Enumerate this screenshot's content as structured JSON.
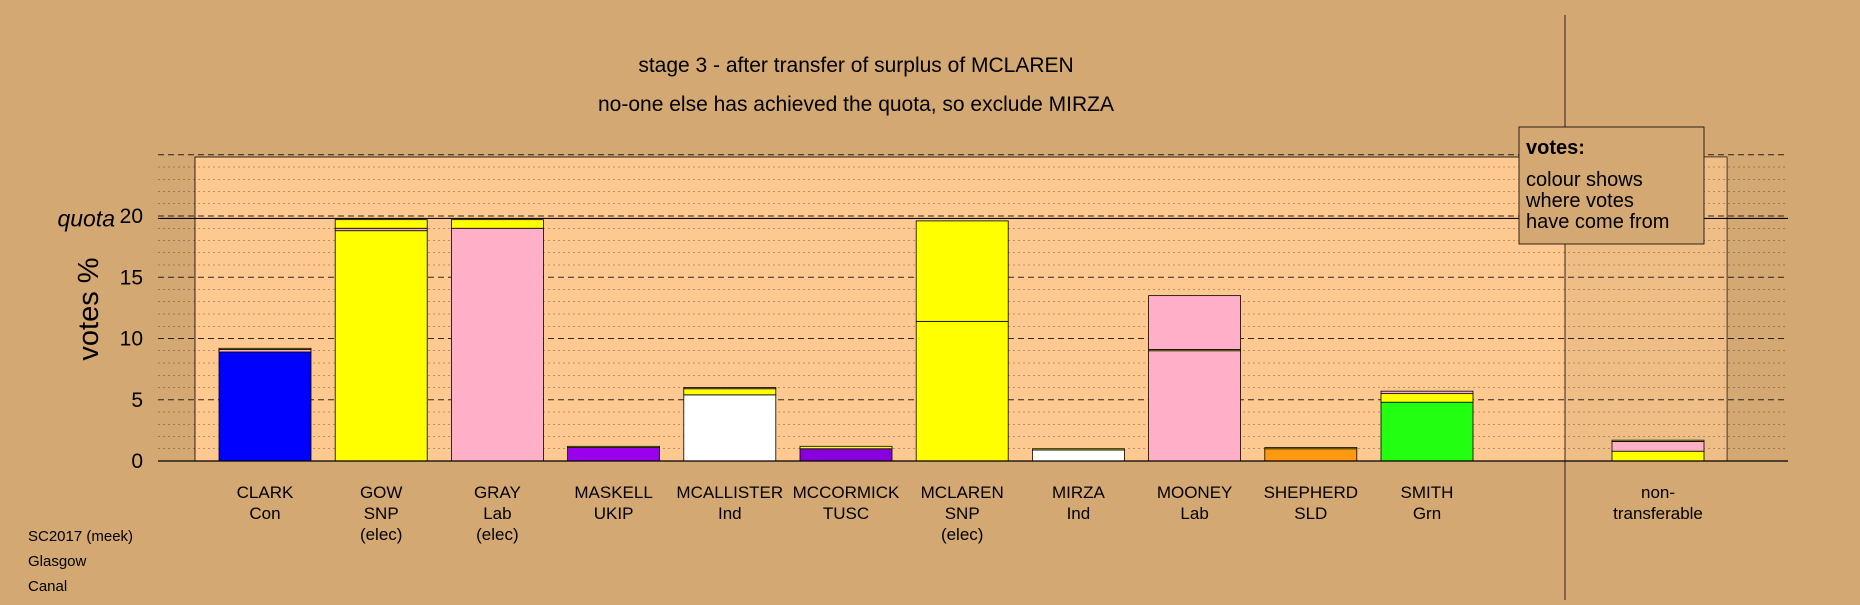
{
  "chart_data": {
    "type": "bar",
    "stacked": true,
    "title": "stage 3 - after transfer of surplus of MCLAREN",
    "subtitle": "no-one else has achieved the quota, so exclude MIRZA",
    "ylabel": "votes %",
    "quota_label": "quota",
    "quota_value": 19.8,
    "ylim": [
      0,
      25
    ],
    "yticks": [
      0,
      5,
      10,
      15,
      20
    ],
    "grid": true,
    "legend": {
      "title": "votes:",
      "lines": [
        "colour shows",
        "where votes",
        "have come from"
      ],
      "placement": "top-right"
    },
    "colors": {
      "background": "#d4a872",
      "plot_area": "#fec991",
      "Con": "#0000ff",
      "SNP": "#ffff00",
      "Lab": "#ffb0c8",
      "UKIP": "#9900ee",
      "Ind": "#ffffff",
      "TUSC": "#8800dd",
      "SLD": "#ff9911",
      "Grn": "#22ff11"
    },
    "candidates": [
      {
        "name": "CLARK",
        "party": "Con",
        "status": "",
        "segments": [
          {
            "party": "Con",
            "value": 8.9
          },
          {
            "party": "Lab",
            "value": 0.2
          },
          {
            "party": "SNP",
            "value": 0.1
          }
        ]
      },
      {
        "name": "GOW",
        "party": "SNP",
        "status": "(elec)",
        "segments": [
          {
            "party": "SNP",
            "value": 18.8
          },
          {
            "party": "Lab",
            "value": 0.2
          },
          {
            "party": "SNP",
            "value": 0.7
          }
        ]
      },
      {
        "name": "GRAY",
        "party": "Lab",
        "status": "(elec)",
        "segments": [
          {
            "party": "Lab",
            "value": 19.0
          },
          {
            "party": "SNP",
            "value": 0.7
          }
        ]
      },
      {
        "name": "MASKELL",
        "party": "UKIP",
        "status": "",
        "segments": [
          {
            "party": "UKIP",
            "value": 1.1
          },
          {
            "party": "SNP",
            "value": 0.1
          }
        ]
      },
      {
        "name": "MCALLISTER",
        "party": "Ind",
        "status": "",
        "segments": [
          {
            "party": "Ind",
            "value": 5.4
          },
          {
            "party": "SNP",
            "value": 0.5
          },
          {
            "party": "Lab",
            "value": 0.1
          }
        ]
      },
      {
        "name": "MCCORMICK",
        "party": "TUSC",
        "status": "",
        "segments": [
          {
            "party": "TUSC",
            "value": 1.0
          },
          {
            "party": "SNP",
            "value": 0.2
          }
        ]
      },
      {
        "name": "MCLAREN",
        "party": "SNP",
        "status": "(elec)",
        "segments": [
          {
            "party": "SNP",
            "value": 11.4
          },
          {
            "party": "SNP",
            "value": 8.2
          }
        ]
      },
      {
        "name": "MIRZA",
        "party": "Ind",
        "status": "",
        "segments": [
          {
            "party": "Ind",
            "value": 0.9
          },
          {
            "party": "SNP",
            "value": 0.1
          }
        ]
      },
      {
        "name": "MOONEY",
        "party": "Lab",
        "status": "",
        "segments": [
          {
            "party": "Lab",
            "value": 9.0
          },
          {
            "party": "SNP",
            "value": 0.1
          },
          {
            "party": "Lab",
            "value": 4.4
          }
        ]
      },
      {
        "name": "SHEPHERD",
        "party": "SLD",
        "status": "",
        "segments": [
          {
            "party": "SLD",
            "value": 1.0
          },
          {
            "party": "SNP",
            "value": 0.1
          }
        ]
      },
      {
        "name": "SMITH",
        "party": "Grn",
        "status": "",
        "segments": [
          {
            "party": "Grn",
            "value": 4.8
          },
          {
            "party": "SNP",
            "value": 0.7
          },
          {
            "party": "Lab",
            "value": 0.2
          }
        ]
      }
    ],
    "nontransferable": {
      "label_lines": [
        "non-",
        "transferable"
      ],
      "segments": [
        {
          "party": "SNP",
          "value": 0.8
        },
        {
          "party": "Lab",
          "value": 0.8
        },
        {
          "party": "SNP",
          "value": 0.1
        }
      ]
    }
  },
  "footer": {
    "line1": "SC2017 (meek)",
    "line2": "Glasgow",
    "line3": "Canal"
  }
}
